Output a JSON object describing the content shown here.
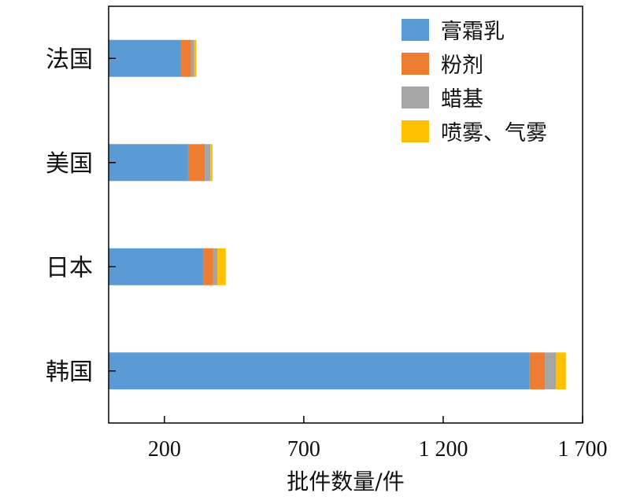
{
  "chart_data": {
    "type": "bar",
    "orientation": "horizontal",
    "stacked": true,
    "title": "",
    "xlabel": "批件数量/件",
    "ylabel": "",
    "xlim": [
      0,
      1700
    ],
    "xticks": [
      200,
      700,
      1200,
      1700
    ],
    "xtick_labels": [
      "200",
      "700",
      "1 200",
      "1 700"
    ],
    "categories": [
      "法国",
      "美国",
      "日本",
      "韩国"
    ],
    "series": [
      {
        "name": "膏霜乳",
        "color": "#5b9bd5",
        "values": [
          260,
          285,
          340,
          1510
        ]
      },
      {
        "name": "粉剂",
        "color": "#ed7d31",
        "values": [
          35,
          60,
          35,
          55
        ]
      },
      {
        "name": "蜡基",
        "color": "#a5a5a5",
        "values": [
          12,
          20,
          15,
          40
        ]
      },
      {
        "name": "喷雾、气雾",
        "color": "#ffc000",
        "values": [
          8,
          8,
          30,
          35
        ]
      }
    ],
    "legend_position": "top-right",
    "grid": false
  }
}
